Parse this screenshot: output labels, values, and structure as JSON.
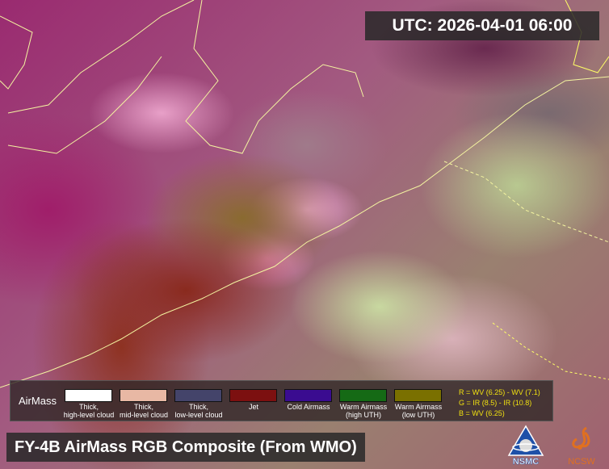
{
  "header": {
    "utc_label": "UTC:  2026-04-01 06:00"
  },
  "legend": {
    "title": "AirMass",
    "items": [
      {
        "line1": "Thick,",
        "line2": "high-level cloud",
        "color": "#ffffff"
      },
      {
        "line1": "Thick,",
        "line2": "mid-level cloud",
        "color": "#e8b8a4"
      },
      {
        "line1": "Thick,",
        "line2": "low-level cloud",
        "color": "#44446a"
      },
      {
        "line1": "Jet",
        "line2": "",
        "color": "#7c1010"
      },
      {
        "line1": "Cold Airmass",
        "line2": "",
        "color": "#3a0c90"
      },
      {
        "line1": "Warm Airmass",
        "line2": "(high UTH)",
        "color": "#156a15"
      },
      {
        "line1": "Warm Airmass",
        "line2": "(low UTH)",
        "color": "#7a7000"
      }
    ],
    "formula": [
      "R = WV (6.25) - WV (7.1)",
      "G = IR (8.5) - IR (10.8)",
      "B = WV (6.25)"
    ]
  },
  "footer": {
    "title": "FY-4B AirMass RGB Composite (From WMO)"
  },
  "logos": {
    "nsmc": "NSMC",
    "ncsw": "NCSW"
  },
  "colors": {
    "border_lines": "#f0f060",
    "formula_text": "#f0e010"
  }
}
